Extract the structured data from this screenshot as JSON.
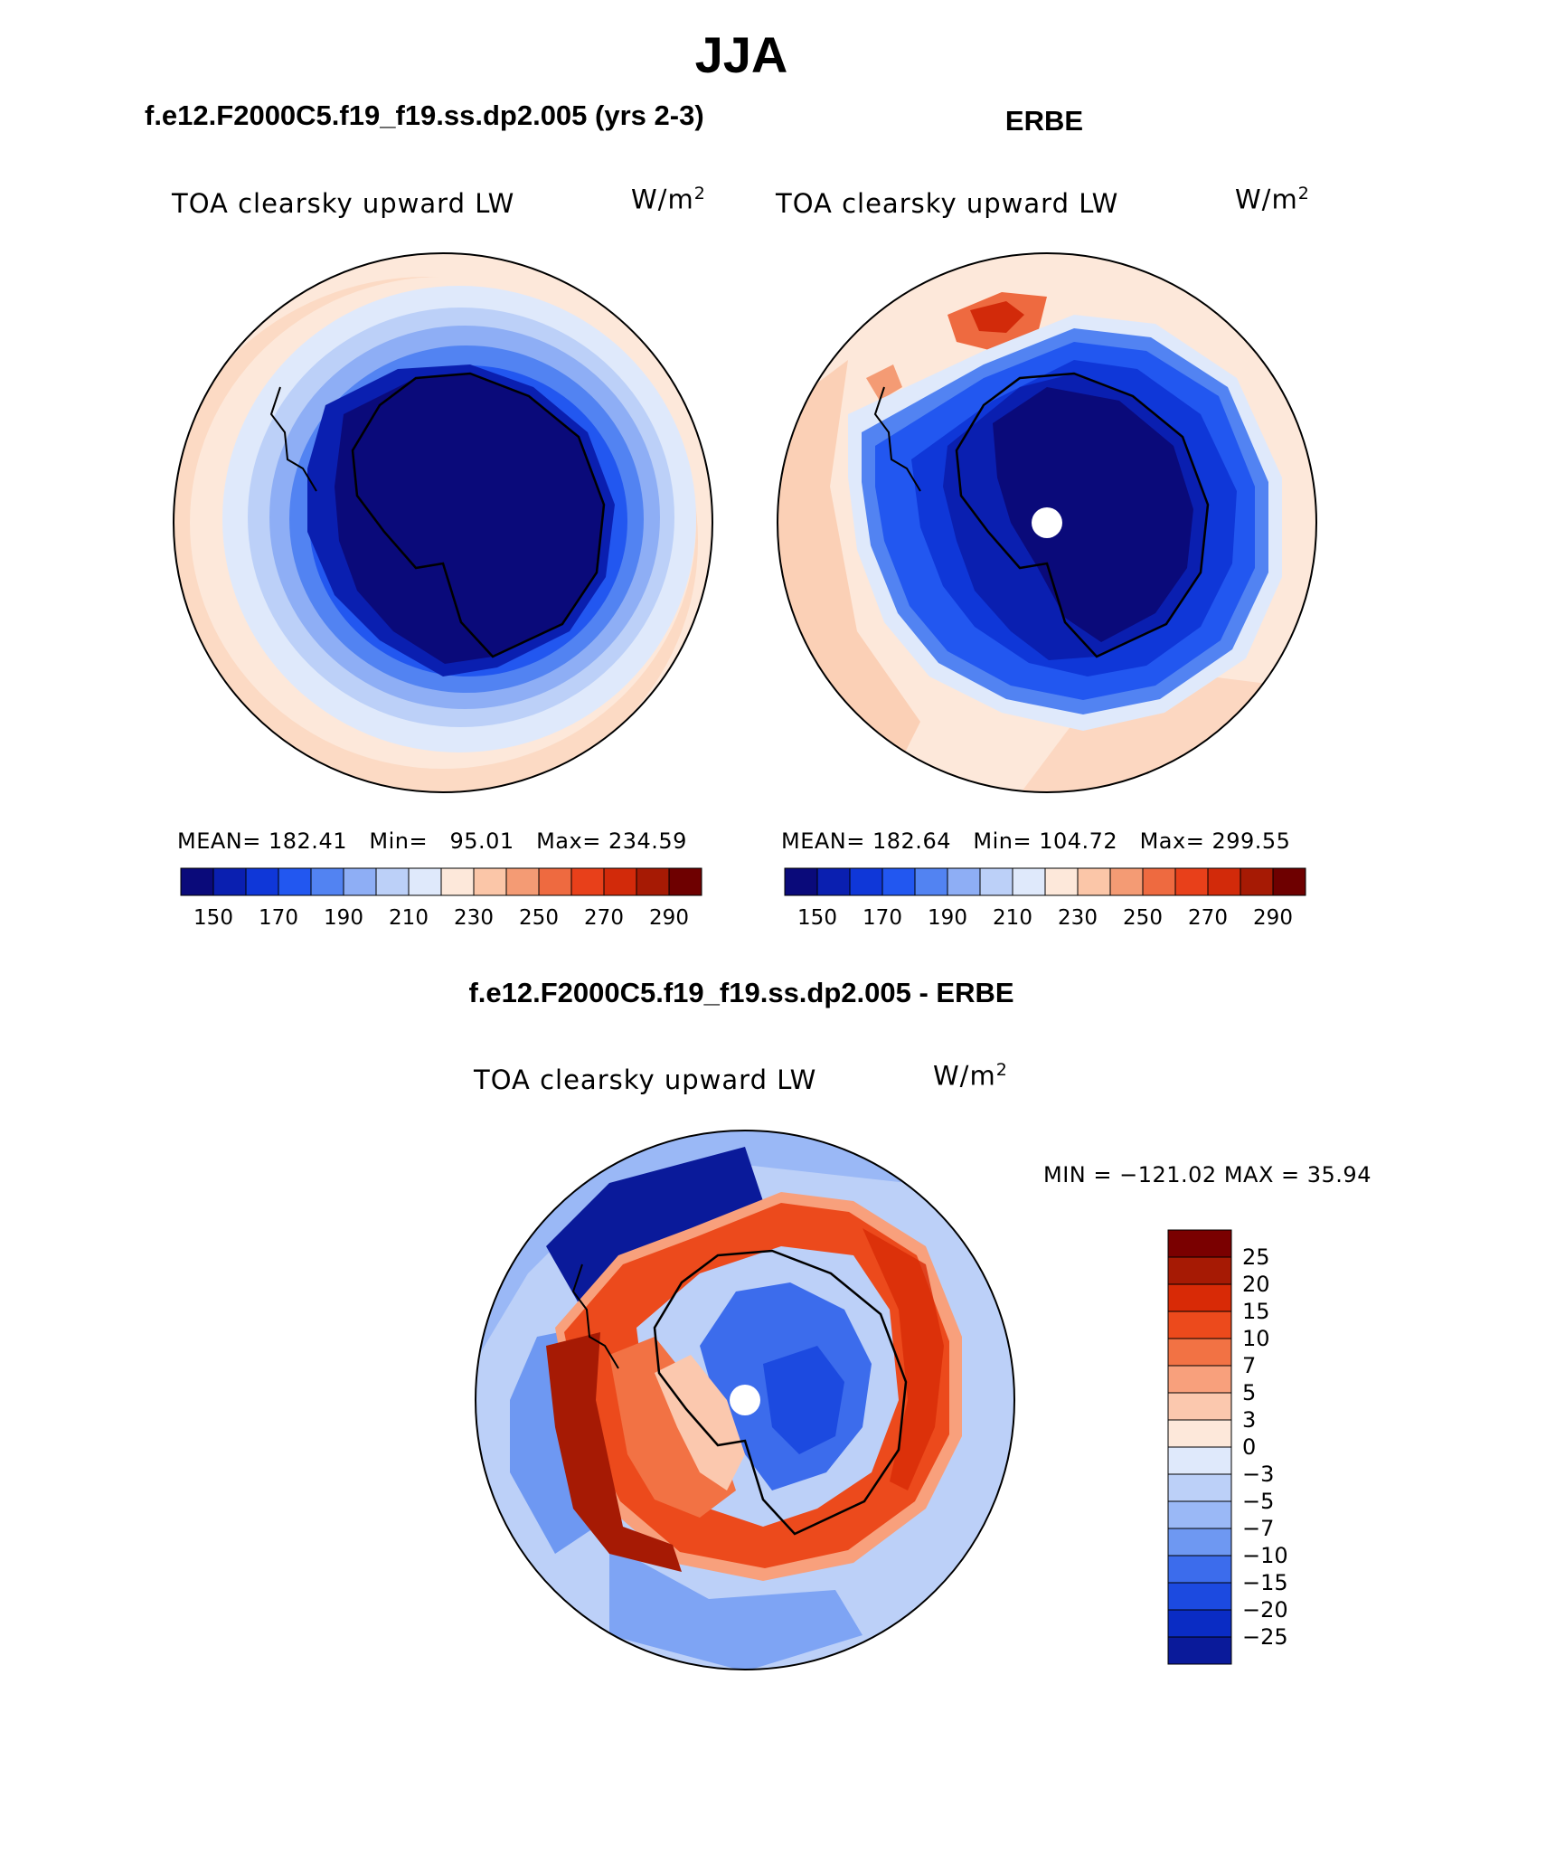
{
  "figure": {
    "title": "JJA",
    "case_a_title": "f.e12.F2000C5.f19_f19.ss.dp2.005 (yrs 2-3)",
    "case_b_title": "ERBE",
    "diff_title": "f.e12.F2000C5.f19_f19.ss.dp2.005 - ERBE"
  },
  "panels": {
    "model": {
      "label": "TOA clearsky upward LW",
      "units_base": "W/m",
      "units_exp": "2",
      "mean_label": "MEAN=",
      "mean": "182.41",
      "min_label": "Min=",
      "min": "95.01",
      "max_label": "Max=",
      "max": "234.59"
    },
    "obs": {
      "label": "TOA clearsky upward LW",
      "units_base": "W/m",
      "units_exp": "2",
      "mean_label": "MEAN=",
      "mean": "182.64",
      "min_label": "Min=",
      "min": "104.72",
      "max_label": "Max=",
      "max": "299.55"
    },
    "diff": {
      "label": "TOA clearsky upward LW",
      "units_base": "W/m",
      "units_exp": "2",
      "minmax_text": "MIN = −121.02 MAX =   35.94"
    }
  },
  "chart_data": [
    {
      "type": "heatmap",
      "name": "model",
      "projection": "south polar stereographic",
      "colorbar": {
        "orientation": "horizontal",
        "colors": [
          "#0a0a7a",
          "#0a1fb0",
          "#0f37d8",
          "#2257f0",
          "#5283f2",
          "#8eaef5",
          "#bcd0f8",
          "#dfe9fb",
          "#fde8da",
          "#fbc6a8",
          "#f49b74",
          "#ee6a40",
          "#e8401a",
          "#d22a0a",
          "#a61a04",
          "#6e0000"
        ],
        "tick_labels": [
          "150",
          "170",
          "190",
          "210",
          "230",
          "250",
          "270",
          "290"
        ]
      },
      "field_summary": {
        "mean": 182.41,
        "min": 95.01,
        "max": 234.59
      }
    },
    {
      "type": "heatmap",
      "name": "obs",
      "projection": "south polar stereographic",
      "colorbar": {
        "orientation": "horizontal",
        "colors": [
          "#0a0a7a",
          "#0a1fb0",
          "#0f37d8",
          "#2257f0",
          "#5283f2",
          "#8eaef5",
          "#bcd0f8",
          "#dfe9fb",
          "#fde8da",
          "#fbc6a8",
          "#f49b74",
          "#ee6a40",
          "#e8401a",
          "#d22a0a",
          "#a61a04",
          "#6e0000"
        ],
        "tick_labels": [
          "150",
          "170",
          "190",
          "210",
          "230",
          "250",
          "270",
          "290"
        ]
      },
      "field_summary": {
        "mean": 182.64,
        "min": 104.72,
        "max": 299.55
      }
    },
    {
      "type": "heatmap",
      "name": "diff",
      "projection": "south polar stereographic",
      "colorbar": {
        "orientation": "vertical",
        "colors_top_to_bottom": [
          "#7a0000",
          "#a61a04",
          "#d82a06",
          "#ec4a1c",
          "#f27244",
          "#f8a07c",
          "#fbc8ae",
          "#fde8da",
          "#dfe9fb",
          "#bcd0f8",
          "#9ab8f6",
          "#6e98f2",
          "#3c6cec",
          "#1c4ae0",
          "#0a2cc4",
          "#0a1a9a"
        ],
        "tick_labels_top_to_bottom": [
          "25",
          "20",
          "15",
          "10",
          "7",
          "5",
          "3",
          "0",
          "−3",
          "−5",
          "−7",
          "−10",
          "−15",
          "−20",
          "−25"
        ]
      },
      "field_summary": {
        "min": -121.02,
        "max": 35.94
      }
    }
  ]
}
